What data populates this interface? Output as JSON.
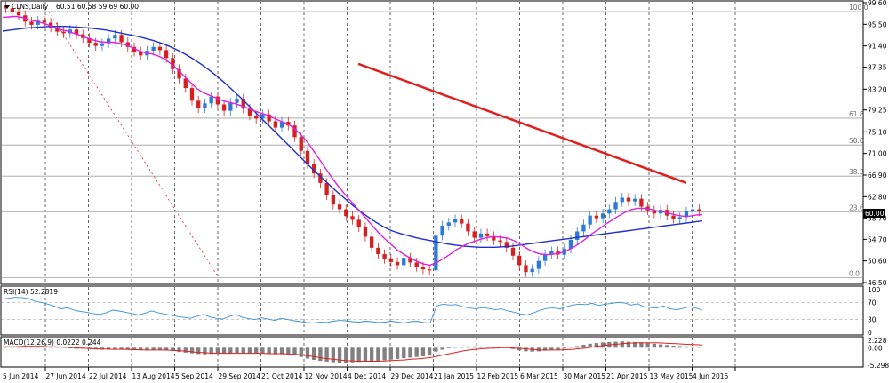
{
  "chart_data": [
    {
      "type": "candlestick",
      "title": "CLNS,Daily",
      "ohlc_readout": "60.51 60.58 59.69 60.00",
      "symbol": "CLNS",
      "timeframe": "Daily",
      "ylim": [
        46.5,
        99.6
      ],
      "price_ticks": [
        "99.60",
        "95.50",
        "91.40",
        "87.35",
        "83.20",
        "79.25",
        "75.10",
        "71.00",
        "66.90",
        "62.80",
        "58.70",
        "54.70",
        "50.60",
        "46.50"
      ],
      "current_price": "60.00",
      "fib_levels": [
        {
          "label": "100.0",
          "value": 97.9
        },
        {
          "label": "61.8",
          "value": 77.7
        },
        {
          "label": "50.0",
          "value": 72.6
        },
        {
          "label": "38.2",
          "value": 66.7
        },
        {
          "label": "23.6",
          "value": 59.9
        },
        {
          "label": "0.0",
          "value": 47.4
        }
      ],
      "series": [
        {
          "name": "Price",
          "color": "#2b7bd6",
          "down_color": "#d62020"
        },
        {
          "name": "",
          "color": "#e020e0"
        },
        {
          "name": "",
          "color": "#1f2fd0"
        },
        {
          "name": "",
          "color": "#e02020"
        }
      ],
      "close_series": [
        98.5,
        97.8,
        97.2,
        96.0,
        95.4,
        96.2,
        95.8,
        94.9,
        94.1,
        93.8,
        94.5,
        93.6,
        92.9,
        92.0,
        91.4,
        91.9,
        92.8,
        93.5,
        92.1,
        91.2,
        90.3,
        89.6,
        90.5,
        91.2,
        90.6,
        89.1,
        87.0,
        85.2,
        83.4,
        81.0,
        79.6,
        80.5,
        81.8,
        80.3,
        79.1,
        80.6,
        81.4,
        79.5,
        78.2,
        77.6,
        78.4,
        77.1,
        75.9,
        77.0,
        76.3,
        74.1,
        71.5,
        69.0,
        67.2,
        65.4,
        63.1,
        61.3,
        60.4,
        59.1,
        58.4,
        57.0,
        55.2,
        53.1,
        51.9,
        51.0,
        50.4,
        49.8,
        51.2,
        50.3,
        49.5,
        49.0,
        48.8,
        55.4,
        57.3,
        57.9,
        58.5,
        57.7,
        56.2,
        55.0,
        55.8,
        55.3,
        54.5,
        54.2,
        53.1,
        51.6,
        49.8,
        48.5,
        49.1,
        50.6,
        51.9,
        52.4,
        51.8,
        52.9,
        54.6,
        56.2,
        57.5,
        59.2,
        58.7,
        59.6,
        60.4,
        61.8,
        62.6,
        61.9,
        62.4,
        60.9,
        60.2,
        59.6,
        60.3,
        59.2,
        58.6,
        58.9,
        60.0,
        60.4,
        60.0
      ],
      "ma_fast": [
        96.8,
        96.9,
        97.0,
        96.8,
        96.4,
        96.1,
        95.8,
        95.4,
        94.9,
        94.5,
        94.2,
        93.8,
        93.4,
        92.9,
        92.5,
        92.2,
        92.1,
        92.1,
        91.9,
        91.6,
        91.1,
        90.5,
        90.1,
        89.9,
        89.5,
        88.9,
        88.0,
        86.9,
        85.7,
        84.5,
        83.3,
        82.5,
        82.0,
        81.5,
        81.0,
        80.7,
        80.4,
        80.0,
        79.5,
        79.0,
        78.6,
        78.2,
        77.6,
        77.1,
        76.6,
        75.8,
        74.6,
        73.2,
        71.5,
        69.7,
        67.9,
        66.1,
        64.5,
        63.0,
        61.6,
        60.2,
        58.8,
        57.4,
        56.0,
        54.8,
        53.7,
        52.6,
        51.8,
        51.1,
        50.5,
        50.0,
        49.8,
        50.3,
        51.0,
        51.8,
        52.7,
        53.4,
        54.0,
        54.4,
        54.8,
        55.1,
        55.2,
        55.1,
        54.9,
        54.4,
        53.7,
        52.9,
        52.3,
        51.9,
        51.8,
        51.9,
        52.1,
        52.5,
        53.1,
        53.9,
        54.8,
        55.8,
        56.6,
        57.5,
        58.3,
        59.1,
        59.8,
        60.3,
        60.6,
        60.6,
        60.4,
        60.1,
        59.9,
        59.6,
        59.3,
        59.1,
        59.1,
        59.3,
        59.4
      ],
      "ma_slow": [
        94.2,
        94.4,
        94.6,
        94.8,
        94.9,
        95.0,
        95.1,
        95.1,
        95.1,
        95.0,
        94.9,
        94.8,
        94.6,
        94.4,
        94.1,
        93.8,
        93.5,
        93.2,
        92.8,
        92.4,
        91.9,
        91.3,
        90.6,
        89.8,
        88.9,
        87.9,
        86.8,
        85.6,
        84.3,
        82.9,
        81.5,
        80.0,
        78.5,
        77.0,
        75.5,
        74.0,
        72.5,
        71.0,
        69.5,
        68.0,
        66.6,
        65.2,
        63.8,
        62.5,
        61.2,
        60.0,
        58.9,
        57.9,
        57.0,
        56.3,
        55.8,
        55.4,
        55.0,
        54.7,
        54.4,
        54.1,
        53.8,
        53.6,
        53.4,
        53.3,
        53.2,
        53.2,
        53.2,
        53.3,
        53.4,
        53.6,
        53.8,
        54.0,
        54.2,
        54.4,
        54.6,
        54.8,
        55.0,
        55.2,
        55.4,
        55.6,
        55.8,
        56.0,
        56.2,
        56.4,
        56.6,
        56.8,
        57.0,
        57.2,
        57.4,
        57.6,
        57.8,
        58.0,
        58.2
      ],
      "trend_line": {
        "from": 88.0,
        "to": 65.4,
        "color": "#e02020"
      }
    },
    {
      "type": "line",
      "title": "RSI(14) 52.2819",
      "ylim": [
        0,
        100
      ],
      "ticks": [
        "100",
        "70",
        "30",
        "0"
      ],
      "levels": [
        70,
        30
      ],
      "series": [
        {
          "color": "#3a8fd9",
          "values": [
            78,
            80,
            82,
            81,
            79,
            73,
            70,
            66,
            61,
            55,
            58,
            52,
            49,
            47,
            44,
            42,
            46,
            52,
            50,
            47,
            44,
            41,
            45,
            50,
            46,
            43,
            40,
            37,
            35,
            33,
            38,
            42,
            36,
            33,
            31,
            37,
            42,
            35,
            32,
            30,
            34,
            31,
            28,
            33,
            30,
            27,
            25,
            23,
            22,
            24,
            23,
            26,
            28,
            27,
            25,
            24,
            26,
            25,
            23,
            24,
            26,
            24,
            22,
            25,
            26,
            23,
            22,
            62,
            66,
            64,
            65,
            60,
            57,
            55,
            58,
            56,
            53,
            55,
            50,
            47,
            43,
            41,
            46,
            52,
            56,
            57,
            55,
            60,
            64,
            66,
            65,
            68,
            63,
            66,
            68,
            70,
            69,
            64,
            67,
            60,
            58,
            57,
            62,
            55,
            53,
            56,
            60,
            57,
            52
          ]
        }
      ]
    },
    {
      "type": "bar",
      "title": "MACD(12,26,9) 0.0222 0.244",
      "ylim": [
        -5.298,
        2.228
      ],
      "ticks": [
        "2.228",
        "0.00",
        "-5.298"
      ],
      "hist": [
        0.2,
        0.3,
        0.4,
        0.5,
        0.5,
        0.4,
        0.3,
        0.2,
        0.1,
        -0.1,
        -0.2,
        -0.3,
        -0.3,
        -0.4,
        -0.5,
        -0.6,
        -0.6,
        -0.5,
        -0.5,
        -0.6,
        -0.7,
        -0.8,
        -0.8,
        -0.7,
        -0.7,
        -0.8,
        -1.0,
        -1.3,
        -1.5,
        -1.7,
        -1.9,
        -2.0,
        -1.9,
        -1.8,
        -1.7,
        -1.7,
        -1.6,
        -1.7,
        -1.8,
        -1.8,
        -1.8,
        -1.9,
        -2.0,
        -2.0,
        -2.0,
        -2.3,
        -2.8,
        -3.3,
        -3.7,
        -4.0,
        -4.2,
        -4.4,
        -4.5,
        -4.5,
        -4.4,
        -4.3,
        -4.2,
        -4.1,
        -4.0,
        -3.8,
        -3.6,
        -3.4,
        -3.2,
        -3.0,
        -2.8,
        -2.6,
        -2.4,
        -1.2,
        -0.6,
        -0.2,
        0.1,
        0.3,
        0.4,
        0.4,
        0.4,
        0.3,
        0.2,
        0.1,
        -0.1,
        -0.4,
        -0.8,
        -1.1,
        -1.2,
        -1.1,
        -0.9,
        -0.7,
        -0.6,
        -0.3,
        0.1,
        0.5,
        0.9,
        1.2,
        1.4,
        1.6,
        1.7,
        1.8,
        1.9,
        1.8,
        1.7,
        1.6,
        1.4,
        1.2,
        1.0,
        0.8,
        0.6,
        0.5,
        0.4,
        0.3,
        0.2
      ],
      "signal": [
        0.3,
        0.3,
        0.3,
        0.4,
        0.4,
        0.4,
        0.4,
        0.3,
        0.3,
        0.2,
        0.1,
        0.0,
        -0.1,
        -0.2,
        -0.3,
        -0.4,
        -0.4,
        -0.5,
        -0.5,
        -0.5,
        -0.6,
        -0.6,
        -0.7,
        -0.7,
        -0.7,
        -0.7,
        -0.8,
        -0.9,
        -1.0,
        -1.2,
        -1.4,
        -1.5,
        -1.6,
        -1.7,
        -1.7,
        -1.7,
        -1.7,
        -1.7,
        -1.7,
        -1.7,
        -1.7,
        -1.8,
        -1.8,
        -1.8,
        -1.9,
        -2.0,
        -2.1,
        -2.4,
        -2.7,
        -3.0,
        -3.3,
        -3.5,
        -3.7,
        -3.9,
        -4.0,
        -4.1,
        -4.1,
        -4.1,
        -4.1,
        -4.0,
        -3.9,
        -3.8,
        -3.7,
        -3.5,
        -3.4,
        -3.2,
        -3.0,
        -2.6,
        -2.2,
        -1.8,
        -1.4,
        -1.0,
        -0.7,
        -0.5,
        -0.3,
        -0.2,
        -0.1,
        0.0,
        0.0,
        -0.1,
        -0.2,
        -0.4,
        -0.6,
        -0.7,
        -0.7,
        -0.7,
        -0.7,
        -0.6,
        -0.5,
        -0.3,
        -0.1,
        0.2,
        0.5,
        0.7,
        0.9,
        1.1,
        1.3,
        1.4,
        1.5,
        1.5,
        1.5,
        1.5,
        1.4,
        1.3,
        1.2,
        1.1,
        1.0,
        0.9,
        0.8
      ]
    }
  ],
  "date_labels": [
    "5 Jun 2014",
    "27 Jun 2014",
    "22 Jul 2014",
    "13 Aug 2014",
    "5 Sep 2014",
    "29 Sep 2014",
    "21 Oct 2014",
    "12 Nov 2014",
    "4 Dec 2014",
    "29 Dec 2014",
    "21 Jan 2015",
    "12 Feb 2015",
    "6 Mar 2015",
    "30 Mar 2015",
    "21 Apr 2015",
    "13 May 2015",
    "4 Jun 2015"
  ],
  "colors": {
    "up": "#2b7bd6",
    "down": "#d62020",
    "ma_fast": "#e020e0",
    "ma_slow": "#1f2fd0",
    "trend": "#e02020",
    "rsi": "#3a8fd9",
    "macd_hist": "#808080",
    "macd_signal": "#e02020",
    "grid": "#000000",
    "fib": "#a0a0a0"
  }
}
